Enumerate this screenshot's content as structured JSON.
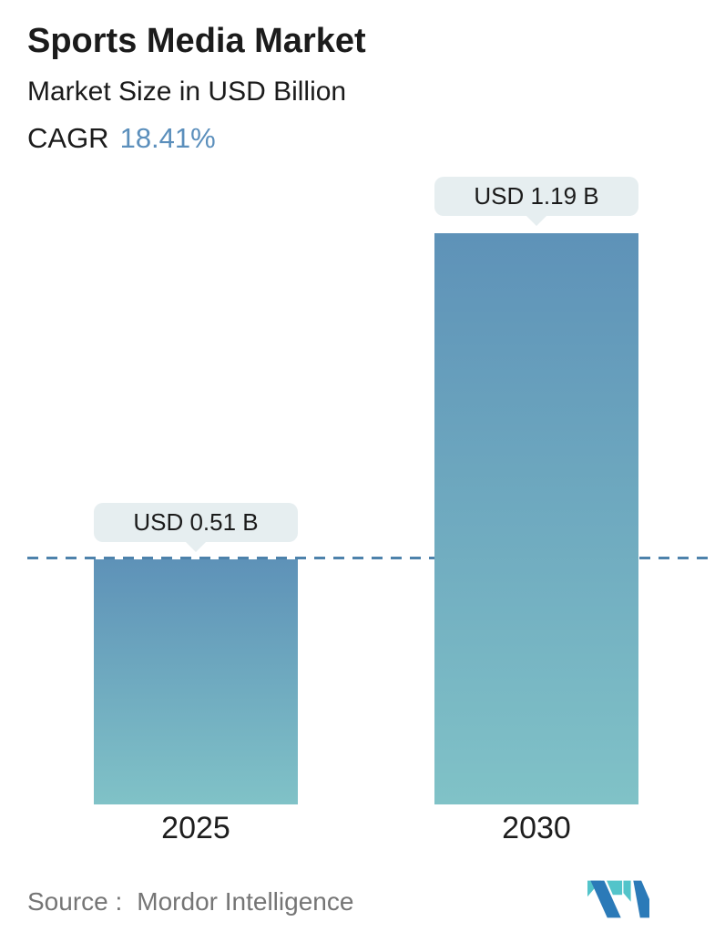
{
  "header": {
    "title": "Sports Media Market",
    "subtitle": "Market Size in USD Billion",
    "cagr_label": "CAGR",
    "cagr_value": "18.41%"
  },
  "chart_data": {
    "type": "bar",
    "title": "Sports Media Market",
    "ylabel": "Market Size in USD Billion",
    "categories": [
      "2025",
      "2030"
    ],
    "values": [
      0.51,
      1.19
    ],
    "value_labels": [
      "USD 0.51 B",
      "USD 1.19 B"
    ],
    "unit": "USD Billion",
    "ylim": [
      0,
      1.27
    ],
    "grid": false,
    "reference_line": {
      "value": 0.51,
      "style": "dashed"
    },
    "colors": {
      "bar_gradient_top": "#5e92b8",
      "bar_gradient_bottom": "#80c2c7",
      "dashed_line": "#4d82ab",
      "label_bubble_bg": "#e6eef0",
      "accent_blue": "#5b8fbc"
    }
  },
  "footer": {
    "source_label": "Source :",
    "source_value": "Mordor Intelligence",
    "logo_name": "mordor-intelligence-logo"
  }
}
